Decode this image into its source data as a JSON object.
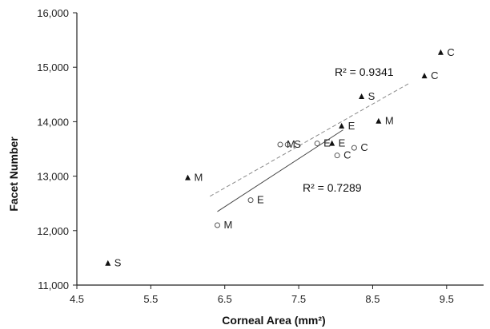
{
  "chart_data": {
    "type": "scatter",
    "title": "",
    "xlabel": "Corneal Area (mm²)",
    "ylabel": "Facet Number",
    "xlim": [
      4.5,
      10.0
    ],
    "ylim": [
      11000,
      16000
    ],
    "x_ticks": [
      4.5,
      5.5,
      6.5,
      7.5,
      8.5,
      9.5
    ],
    "x_tick_labels": [
      "4.5",
      "5.5",
      "6.5",
      "7.5",
      "8.5",
      "9.5"
    ],
    "y_ticks": [
      11000,
      12000,
      13000,
      14000,
      15000,
      16000
    ],
    "y_tick_labels": [
      "11,000",
      "12,000",
      "13,000",
      "14,000",
      "15,000",
      "16,000"
    ],
    "grid": false,
    "series": [
      {
        "marker": "triangle",
        "color": "#111111",
        "points": [
          {
            "x": 4.92,
            "y": 11400,
            "label": "S"
          },
          {
            "x": 6.0,
            "y": 12970,
            "label": "M"
          },
          {
            "x": 7.95,
            "y": 13600,
            "label": "E"
          },
          {
            "x": 8.08,
            "y": 13920,
            "label": "E"
          },
          {
            "x": 8.35,
            "y": 14460,
            "label": "S"
          },
          {
            "x": 8.58,
            "y": 14010,
            "label": "M"
          },
          {
            "x": 9.2,
            "y": 14840,
            "label": "C"
          },
          {
            "x": 9.42,
            "y": 15270,
            "label": "C"
          }
        ],
        "trendline": {
          "x": [
            6.3,
            9.0
          ],
          "y": [
            12630,
            14710
          ],
          "style": "dashed",
          "r2_label": "R² = 0.9341"
        }
      },
      {
        "marker": "circle",
        "color": "#555555",
        "points": [
          {
            "x": 6.4,
            "y": 12100,
            "label": "M"
          },
          {
            "x": 6.85,
            "y": 12560,
            "label": "E"
          },
          {
            "x": 7.25,
            "y": 13580,
            "label": "M"
          },
          {
            "x": 7.35,
            "y": 13580,
            "label": "S"
          },
          {
            "x": 7.75,
            "y": 13600,
            "label": "E"
          },
          {
            "x": 8.02,
            "y": 13380,
            "label": "C"
          },
          {
            "x": 8.25,
            "y": 13520,
            "label": "C"
          }
        ],
        "trendline": {
          "x": [
            6.4,
            8.1
          ],
          "y": [
            12350,
            13850
          ],
          "style": "solid",
          "r2_label": "R² = 0.7289"
        }
      }
    ]
  }
}
